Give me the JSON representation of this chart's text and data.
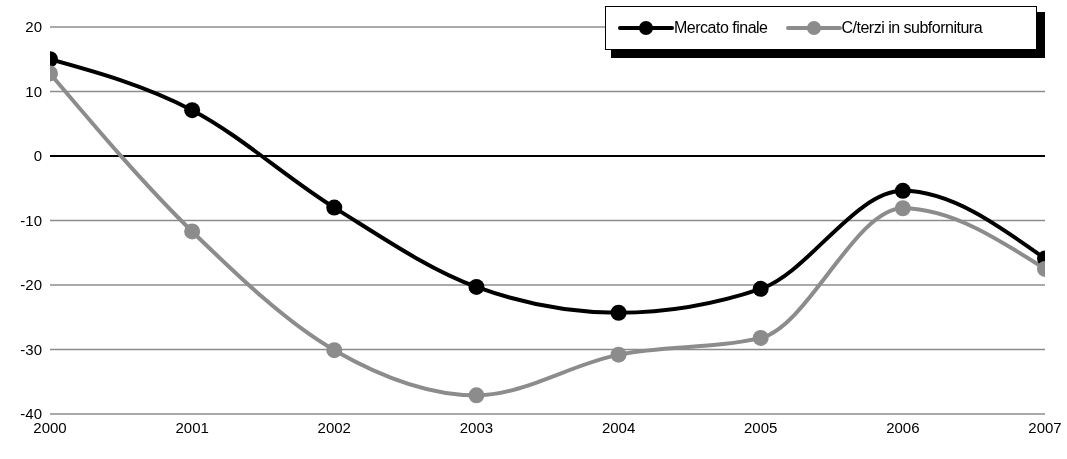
{
  "chart_data": {
    "type": "line",
    "x": [
      2000,
      2001,
      2002,
      2003,
      2004,
      2005,
      2006,
      2007
    ],
    "series": [
      {
        "name": "Mercato finale",
        "color": "#000000",
        "values": [
          15.0,
          7.1,
          -8.0,
          -20.3,
          -24.3,
          -20.6,
          -5.4,
          -15.9
        ]
      },
      {
        "name": "C/terzi in subfornitura",
        "color": "#8c8c8c",
        "values": [
          12.8,
          -11.7,
          -30.1,
          -37.1,
          -30.8,
          -28.2,
          -8.1,
          -17.5
        ]
      }
    ],
    "xlim": [
      2000,
      2007
    ],
    "xticks": [
      2000,
      2001,
      2002,
      2003,
      2004,
      2005,
      2006,
      2007
    ],
    "ylim": [
      -40,
      20
    ],
    "yticks": [
      -40,
      -30,
      -20,
      -10,
      0,
      10,
      20
    ],
    "grid": "y",
    "legend": "top right",
    "marker": "circle",
    "line_style": "solid"
  }
}
